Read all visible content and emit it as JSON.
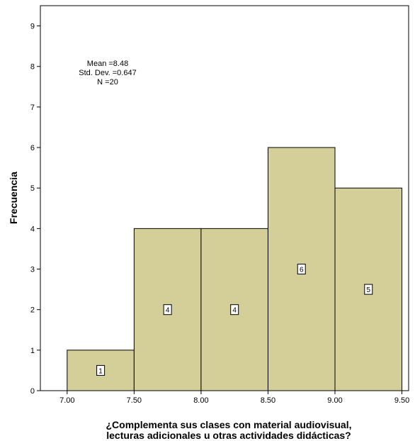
{
  "chart_data": {
    "type": "bar",
    "subtype": "histogram",
    "bins": [
      {
        "x0": 7.0,
        "x1": 7.5,
        "value": 1,
        "label": "1"
      },
      {
        "x0": 7.5,
        "x1": 8.0,
        "value": 4,
        "label": "4"
      },
      {
        "x0": 8.0,
        "x1": 8.5,
        "value": 4,
        "label": "4"
      },
      {
        "x0": 8.5,
        "x1": 9.0,
        "value": 6,
        "label": "6"
      },
      {
        "x0": 9.0,
        "x1": 9.5,
        "value": 5,
        "label": "5"
      }
    ],
    "xlabel_lines": [
      "¿Complementa sus clases con material audiovisual,",
      "lecturas adicionales u otras actividades didácticas?"
    ],
    "ylabel": "Frecuencia",
    "xlim": [
      6.8,
      9.55
    ],
    "ylim": [
      0,
      9.5
    ],
    "x_ticks": [
      "7.00",
      "7.50",
      "8.00",
      "8.50",
      "9.00",
      "9.50"
    ],
    "y_ticks": [
      "0",
      "1",
      "2",
      "3",
      "4",
      "5",
      "6",
      "7",
      "8",
      "9"
    ],
    "stats": {
      "mean": "Mean =8.48",
      "std": "Std. Dev. =0.647",
      "n": "N =20"
    },
    "grid": false,
    "bar_color": "#d4cf99",
    "bar_stroke": "#000000"
  }
}
